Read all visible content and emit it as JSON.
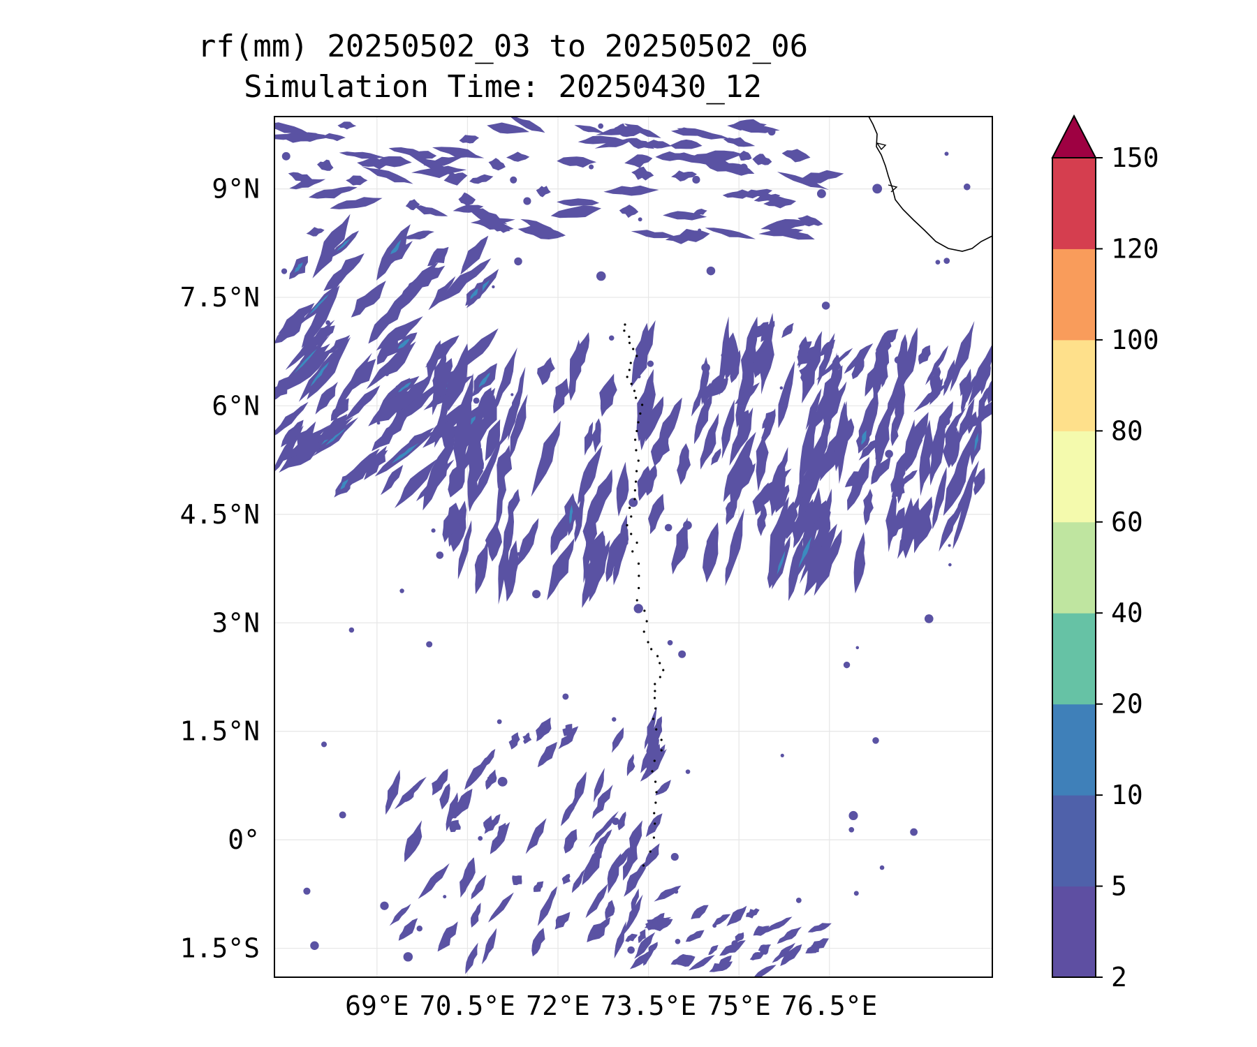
{
  "title": {
    "line1": "rf(mm) 20250502_03 to 20250502_06",
    "line2": "Simulation Time: 20250430_12"
  },
  "map": {
    "lon_range": [
      67.3,
      79.2
    ],
    "lat_range": [
      -1.9,
      10.0
    ],
    "lat_ticks": [
      {
        "value": 9,
        "label": "9°N"
      },
      {
        "value": 7.5,
        "label": "7.5°N"
      },
      {
        "value": 6,
        "label": "6°N"
      },
      {
        "value": 4.5,
        "label": "4.5°N"
      },
      {
        "value": 3,
        "label": "3°N"
      },
      {
        "value": 1.5,
        "label": "1.5°N"
      },
      {
        "value": 0,
        "label": "0°"
      },
      {
        "value": -1.5,
        "label": "1.5°S"
      }
    ],
    "lon_ticks": [
      {
        "value": 69,
        "label": "69°E"
      },
      {
        "value": 70.5,
        "label": "70.5°E"
      },
      {
        "value": 72,
        "label": "72°E"
      },
      {
        "value": 73.5,
        "label": "73.5°E"
      },
      {
        "value": 75,
        "label": "75°E"
      },
      {
        "value": 76.5,
        "label": "76.5°E"
      }
    ],
    "gridlines": true,
    "colors": {
      "rain_fill": "#5a52a3",
      "rain_heavy": "#3b8bbf",
      "coast": "#000000",
      "grid": "#e6e6e6"
    }
  },
  "colorbar": {
    "levels": [
      2,
      5,
      10,
      20,
      40,
      60,
      80,
      100,
      120,
      150
    ],
    "labels": [
      "2",
      "5",
      "10",
      "20",
      "40",
      "60",
      "80",
      "100",
      "120",
      "150"
    ],
    "colors": [
      "#5e4fa2",
      "#4f61aa",
      "#3f80b9",
      "#66c2a5",
      "#bfe5a0",
      "#f4faad",
      "#fee08b",
      "#f99c5b",
      "#d53e4f"
    ],
    "extend_color": "#9e0142",
    "extend": "max"
  }
}
